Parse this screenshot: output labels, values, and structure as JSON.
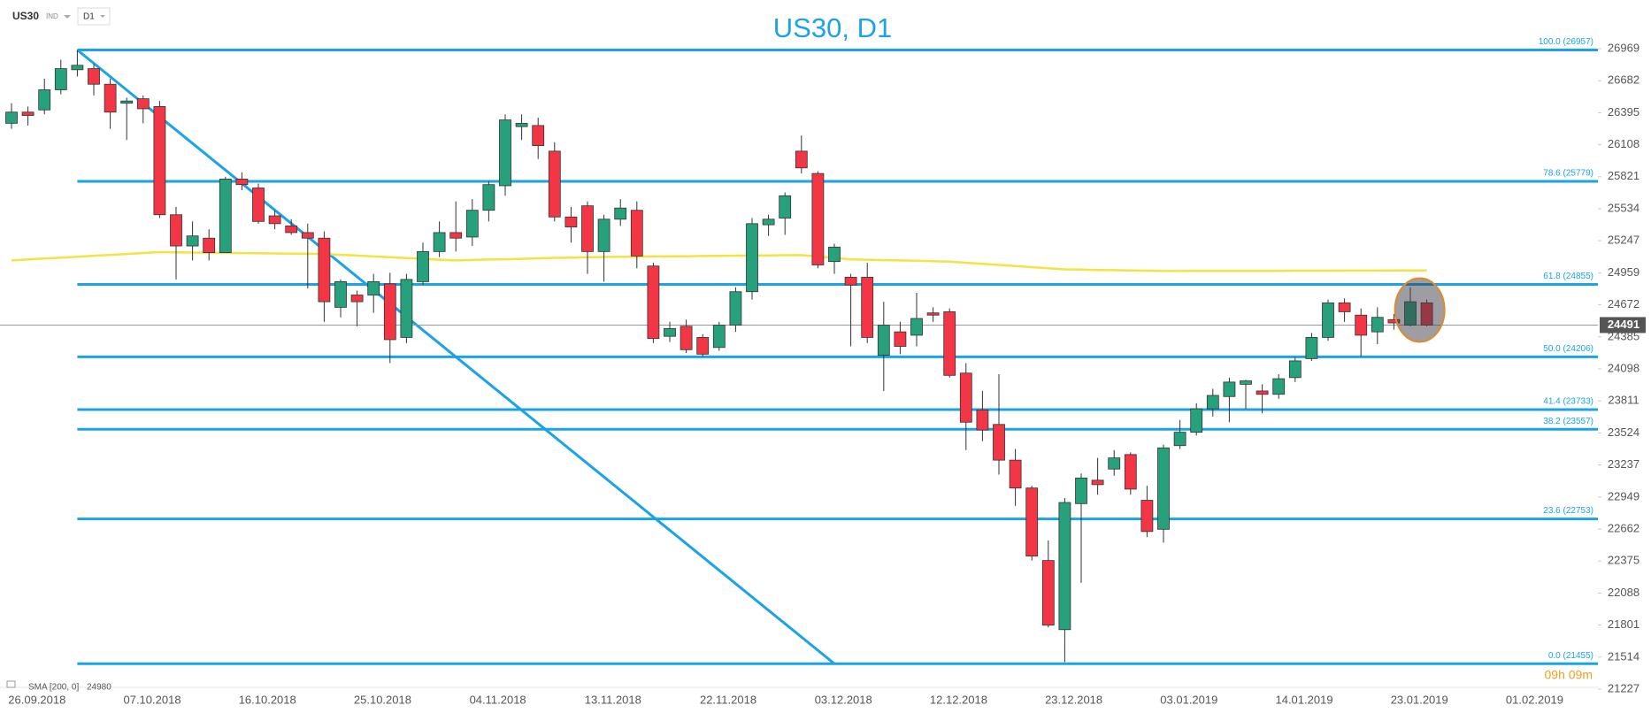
{
  "header": {
    "symbol": "US30",
    "market": "IND",
    "timeframe": "D1"
  },
  "chart_data": {
    "type": "candlestick",
    "title": "US30, D1",
    "categories": [
      null,
      null,
      "26.09.2018",
      null,
      null,
      null,
      null,
      null,
      null,
      "07.10.2018",
      null,
      null,
      null,
      null,
      null,
      null,
      "16.10.2018",
      null,
      null,
      null,
      null,
      null,
      null,
      "25.10.2018",
      null,
      null,
      null,
      null,
      null,
      null,
      "04.11.2018",
      null,
      null,
      null,
      null,
      null,
      null,
      "13.11.2018",
      null,
      null,
      null,
      null,
      null,
      null,
      "22.11.2018",
      null,
      null,
      null,
      null,
      null,
      null,
      "03.12.2018",
      null,
      null,
      null,
      null,
      null,
      null,
      "12.12.2018",
      null,
      null,
      null,
      null,
      null,
      null,
      "23.12.2018",
      null,
      null,
      null,
      null,
      null,
      null,
      "03.01.2019",
      null,
      null,
      null,
      null,
      null,
      null,
      "14.01.2019",
      null,
      null,
      null,
      null,
      null,
      null,
      "23.01.2019",
      null,
      null,
      null,
      null,
      null,
      null,
      "01.02.2019",
      null,
      null,
      null
    ],
    "open": [
      26300,
      26400,
      26420,
      26600,
      26780,
      26790,
      26650,
      26480,
      26520,
      26450,
      25480,
      25200,
      25270,
      25140,
      25800,
      25720,
      25470,
      25380,
      25320,
      25270,
      24650,
      24760,
      24760,
      24860,
      24380,
      24880,
      25150,
      25320,
      25280,
      25520,
      25740,
      26270,
      26280,
      26050,
      25460,
      25560,
      25150,
      25440,
      25520,
      25020,
      24390,
      24480,
      24380,
      24290,
      24490,
      24790,
      25390,
      25450,
      26050,
      25850,
      25060,
      24920,
      24920,
      24220,
      24430,
      24400,
      24600,
      24610,
      24060,
      23730,
      23600,
      23280,
      23030,
      22380,
      21760,
      22890,
      23100,
      23200,
      23330,
      22920,
      22660,
      23410,
      23530,
      23740,
      23850,
      23960,
      23900,
      23870,
      24020,
      24190,
      24380,
      24690,
      24580,
      24430,
      24540,
      24490,
      24690,
      null,
      null,
      null,
      null,
      null,
      null,
      null,
      null,
      null,
      null
    ],
    "high": [
      26480,
      26450,
      26700,
      26870,
      26957,
      26830,
      26700,
      26530,
      26550,
      26500,
      25550,
      25420,
      25350,
      25820,
      25860,
      25760,
      25520,
      25440,
      25400,
      25330,
      24900,
      24800,
      24950,
      24960,
      24950,
      25230,
      25420,
      25600,
      25620,
      25780,
      26380,
      26380,
      26350,
      26130,
      25550,
      25600,
      25480,
      25620,
      25600,
      25050,
      24520,
      24540,
      24410,
      24520,
      24830,
      25450,
      25480,
      25680,
      26190,
      25870,
      25220,
      24950,
      25050,
      24700,
      24520,
      24780,
      24650,
      24640,
      24150,
      23900,
      24050,
      23380,
      23050,
      22560,
      22940,
      23160,
      23300,
      23370,
      23350,
      23050,
      23420,
      23640,
      23790,
      23920,
      24020,
      24000,
      23960,
      24050,
      24200,
      24420,
      24720,
      24730,
      24640,
      24650,
      24590,
      24830,
      24720,
      null,
      null,
      null,
      null,
      null,
      null,
      null,
      null,
      null,
      null
    ],
    "low": [
      26250,
      26280,
      26380,
      26560,
      26720,
      26550,
      26250,
      26150,
      26300,
      25450,
      24900,
      25070,
      25070,
      25140,
      25700,
      25400,
      25350,
      25300,
      24820,
      24520,
      24560,
      24480,
      24600,
      24150,
      24330,
      24850,
      25100,
      25150,
      25200,
      25420,
      25650,
      26150,
      25980,
      25420,
      25230,
      24950,
      24880,
      25380,
      25000,
      24330,
      24340,
      24240,
      24210,
      24260,
      24430,
      24720,
      25290,
      25300,
      25850,
      25000,
      24950,
      24300,
      24330,
      23900,
      24230,
      24300,
      24520,
      24020,
      23370,
      23450,
      23150,
      22870,
      22380,
      21780,
      21470,
      22180,
      22970,
      23140,
      22970,
      22590,
      22540,
      23380,
      23500,
      23670,
      23620,
      23740,
      23700,
      23830,
      23980,
      24170,
      24350,
      24520,
      24210,
      24320,
      24450,
      24480,
      24480,
      null,
      null,
      null,
      null,
      null,
      null,
      null,
      null,
      null,
      null
    ],
    "close": [
      26400,
      26370,
      26600,
      26790,
      26820,
      26650,
      26400,
      26500,
      26430,
      25480,
      25200,
      25290,
      25140,
      25800,
      25750,
      25420,
      25400,
      25320,
      25270,
      24700,
      24880,
      24700,
      24880,
      24360,
      24900,
      25150,
      25320,
      25270,
      25520,
      25750,
      26330,
      26300,
      26100,
      25460,
      25370,
      25150,
      25440,
      25540,
      25110,
      24370,
      24460,
      24270,
      24230,
      24490,
      24790,
      25400,
      25440,
      25650,
      25900,
      25030,
      25190,
      24850,
      24380,
      24490,
      24300,
      24550,
      24580,
      24040,
      23620,
      23550,
      23280,
      23030,
      22420,
      21800,
      22900,
      23120,
      23060,
      23300,
      23020,
      22640,
      23390,
      23530,
      23740,
      23860,
      23980,
      23990,
      23870,
      24010,
      24170,
      24380,
      24690,
      24610,
      24400,
      24560,
      24510,
      24700,
      24491,
      null,
      null,
      null,
      null,
      null,
      null,
      null,
      null,
      null,
      null
    ],
    "colors": {
      "up": "#26a17b",
      "down": "#f23645",
      "fib": "#1aa3e8"
    },
    "ylim": [
      21227,
      26969
    ],
    "yticks": [
      26969,
      26682,
      26395,
      26108,
      25821,
      25534,
      25247,
      24959,
      24672,
      24385,
      24098,
      23811,
      23524,
      23237,
      22949,
      22662,
      22375,
      22088,
      21801,
      21514,
      21227
    ],
    "sma": {
      "name": "SMA [200, 0]",
      "value": 24980,
      "color": "#f5e342",
      "values": [
        25070,
        25078,
        25087,
        25095,
        25103,
        25112,
        25120,
        25128,
        25137,
        25145,
        25143,
        25141,
        25140,
        25138,
        25136,
        25135,
        25133,
        25131,
        25130,
        25128,
        25121,
        25114,
        25106,
        25099,
        25092,
        25085,
        25077,
        25070,
        25074,
        25078,
        25081,
        25085,
        25089,
        25093,
        25096,
        25100,
        25101,
        25103,
        25104,
        25106,
        25107,
        25108,
        25110,
        25111,
        25113,
        25114,
        25115,
        25117,
        25118,
        25105,
        25093,
        25080,
        25077,
        25073,
        25070,
        25067,
        25063,
        25060,
        25050,
        25040,
        25030,
        25020,
        25010,
        25000,
        24990,
        24988,
        24985,
        24983,
        24980,
        24978,
        24975,
        24975,
        24976,
        24976,
        24976,
        24977,
        24977,
        24977,
        24978,
        24978,
        24978,
        24979,
        24979,
        24979,
        24980,
        24980,
        24980,
        null,
        null,
        null,
        null,
        null,
        null,
        null,
        null,
        null,
        null
      ]
    },
    "fib_levels": [
      {
        "value": 26957,
        "label": "100.0 (26957)"
      },
      {
        "value": 25779,
        "label": "78.6 (25779)"
      },
      {
        "value": 24855,
        "label": "61.8 (24855)"
      },
      {
        "value": 24206,
        "label": "50.0 (24206)"
      },
      {
        "value": 23733,
        "label": "41.4 (23733)"
      },
      {
        "value": 23557,
        "label": "38.2 (23557)"
      },
      {
        "value": 22753,
        "label": "23.6 (22753)"
      },
      {
        "value": 21455,
        "label": "0.0 (21455)"
      }
    ],
    "last_price": 24491,
    "countdown": "09h 09m"
  }
}
